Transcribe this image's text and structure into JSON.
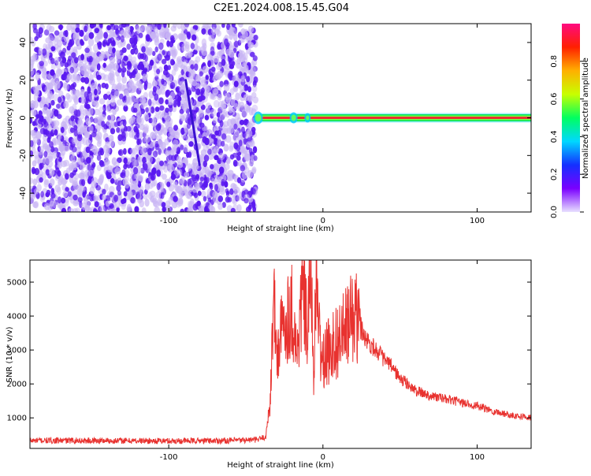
{
  "figure": {
    "title": "C2E1.2024.008.15.45.G04"
  },
  "colors": {
    "background": "#ffffff",
    "axes": "#000000",
    "snr_line": "#e8322f",
    "scatter_purple": "#5a18f0",
    "scatter_light": "#c8b4f4",
    "band_outer": "#00e060",
    "band_mid": "#00c8ff",
    "band_core": "#e83030",
    "colorbar_stops": [
      "#e8e0ff",
      "#7a00ff",
      "#1430ff",
      "#00d8ff",
      "#00ff60",
      "#c8ff00",
      "#ffb000",
      "#ff2000",
      "#ff0a80"
    ]
  },
  "chart_data": [
    {
      "type": "heatmap",
      "title": "C2E1.2024.008.15.45.G04",
      "xlabel": "Height of straight line (km)",
      "ylabel": "Frequency (Hz)",
      "xlim": [
        -190,
        135
      ],
      "ylim": [
        -50,
        50
      ],
      "xticks": [
        -100,
        0,
        100
      ],
      "yticks": [
        -40,
        -20,
        0,
        20,
        40
      ],
      "noise_region_x": [
        -190,
        -42
      ],
      "signal_band": {
        "x": [
          -42,
          135
        ],
        "frequency": 0,
        "value": 1.0
      },
      "streak": {
        "x": [
          -89,
          -80
        ],
        "frequency": [
          20,
          -25
        ]
      },
      "colorbar": {
        "label": "Normalized spectral amplitude",
        "ticks": [
          0.0,
          0.2,
          0.4,
          0.6,
          0.8
        ],
        "range": [
          0,
          1
        ]
      }
    },
    {
      "type": "line",
      "xlabel": "Height of straight line (km)",
      "ylabel": "SNR (10 * v/v)",
      "xlim": [
        -190,
        135
      ],
      "ylim": [
        100,
        5650
      ],
      "xticks": [
        -100,
        0,
        100
      ],
      "yticks": [
        1000,
        2000,
        3000,
        4000,
        5000
      ],
      "grid": false,
      "series": [
        {
          "x": [
            -190,
            -150,
            -100,
            -60,
            -42,
            -37,
            -34,
            -32,
            -30,
            -27,
            -24,
            -20,
            -17,
            -13,
            -10,
            -8,
            -6,
            -4,
            -2,
            0,
            5,
            10,
            15,
            20,
            22,
            25,
            30,
            35,
            40,
            45,
            50,
            55,
            60,
            70,
            80,
            90,
            100,
            110,
            120,
            135
          ],
          "values": [
            330,
            330,
            320,
            330,
            360,
            450,
            1700,
            4600,
            2800,
            3500,
            3900,
            4250,
            2800,
            4800,
            3400,
            5550,
            2400,
            5300,
            3100,
            2600,
            3100,
            3300,
            3600,
            4100,
            3900,
            3600,
            3200,
            3000,
            2700,
            2500,
            2150,
            2000,
            1800,
            1650,
            1550,
            1450,
            1350,
            1200,
            1100,
            1000
          ]
        }
      ]
    }
  ]
}
